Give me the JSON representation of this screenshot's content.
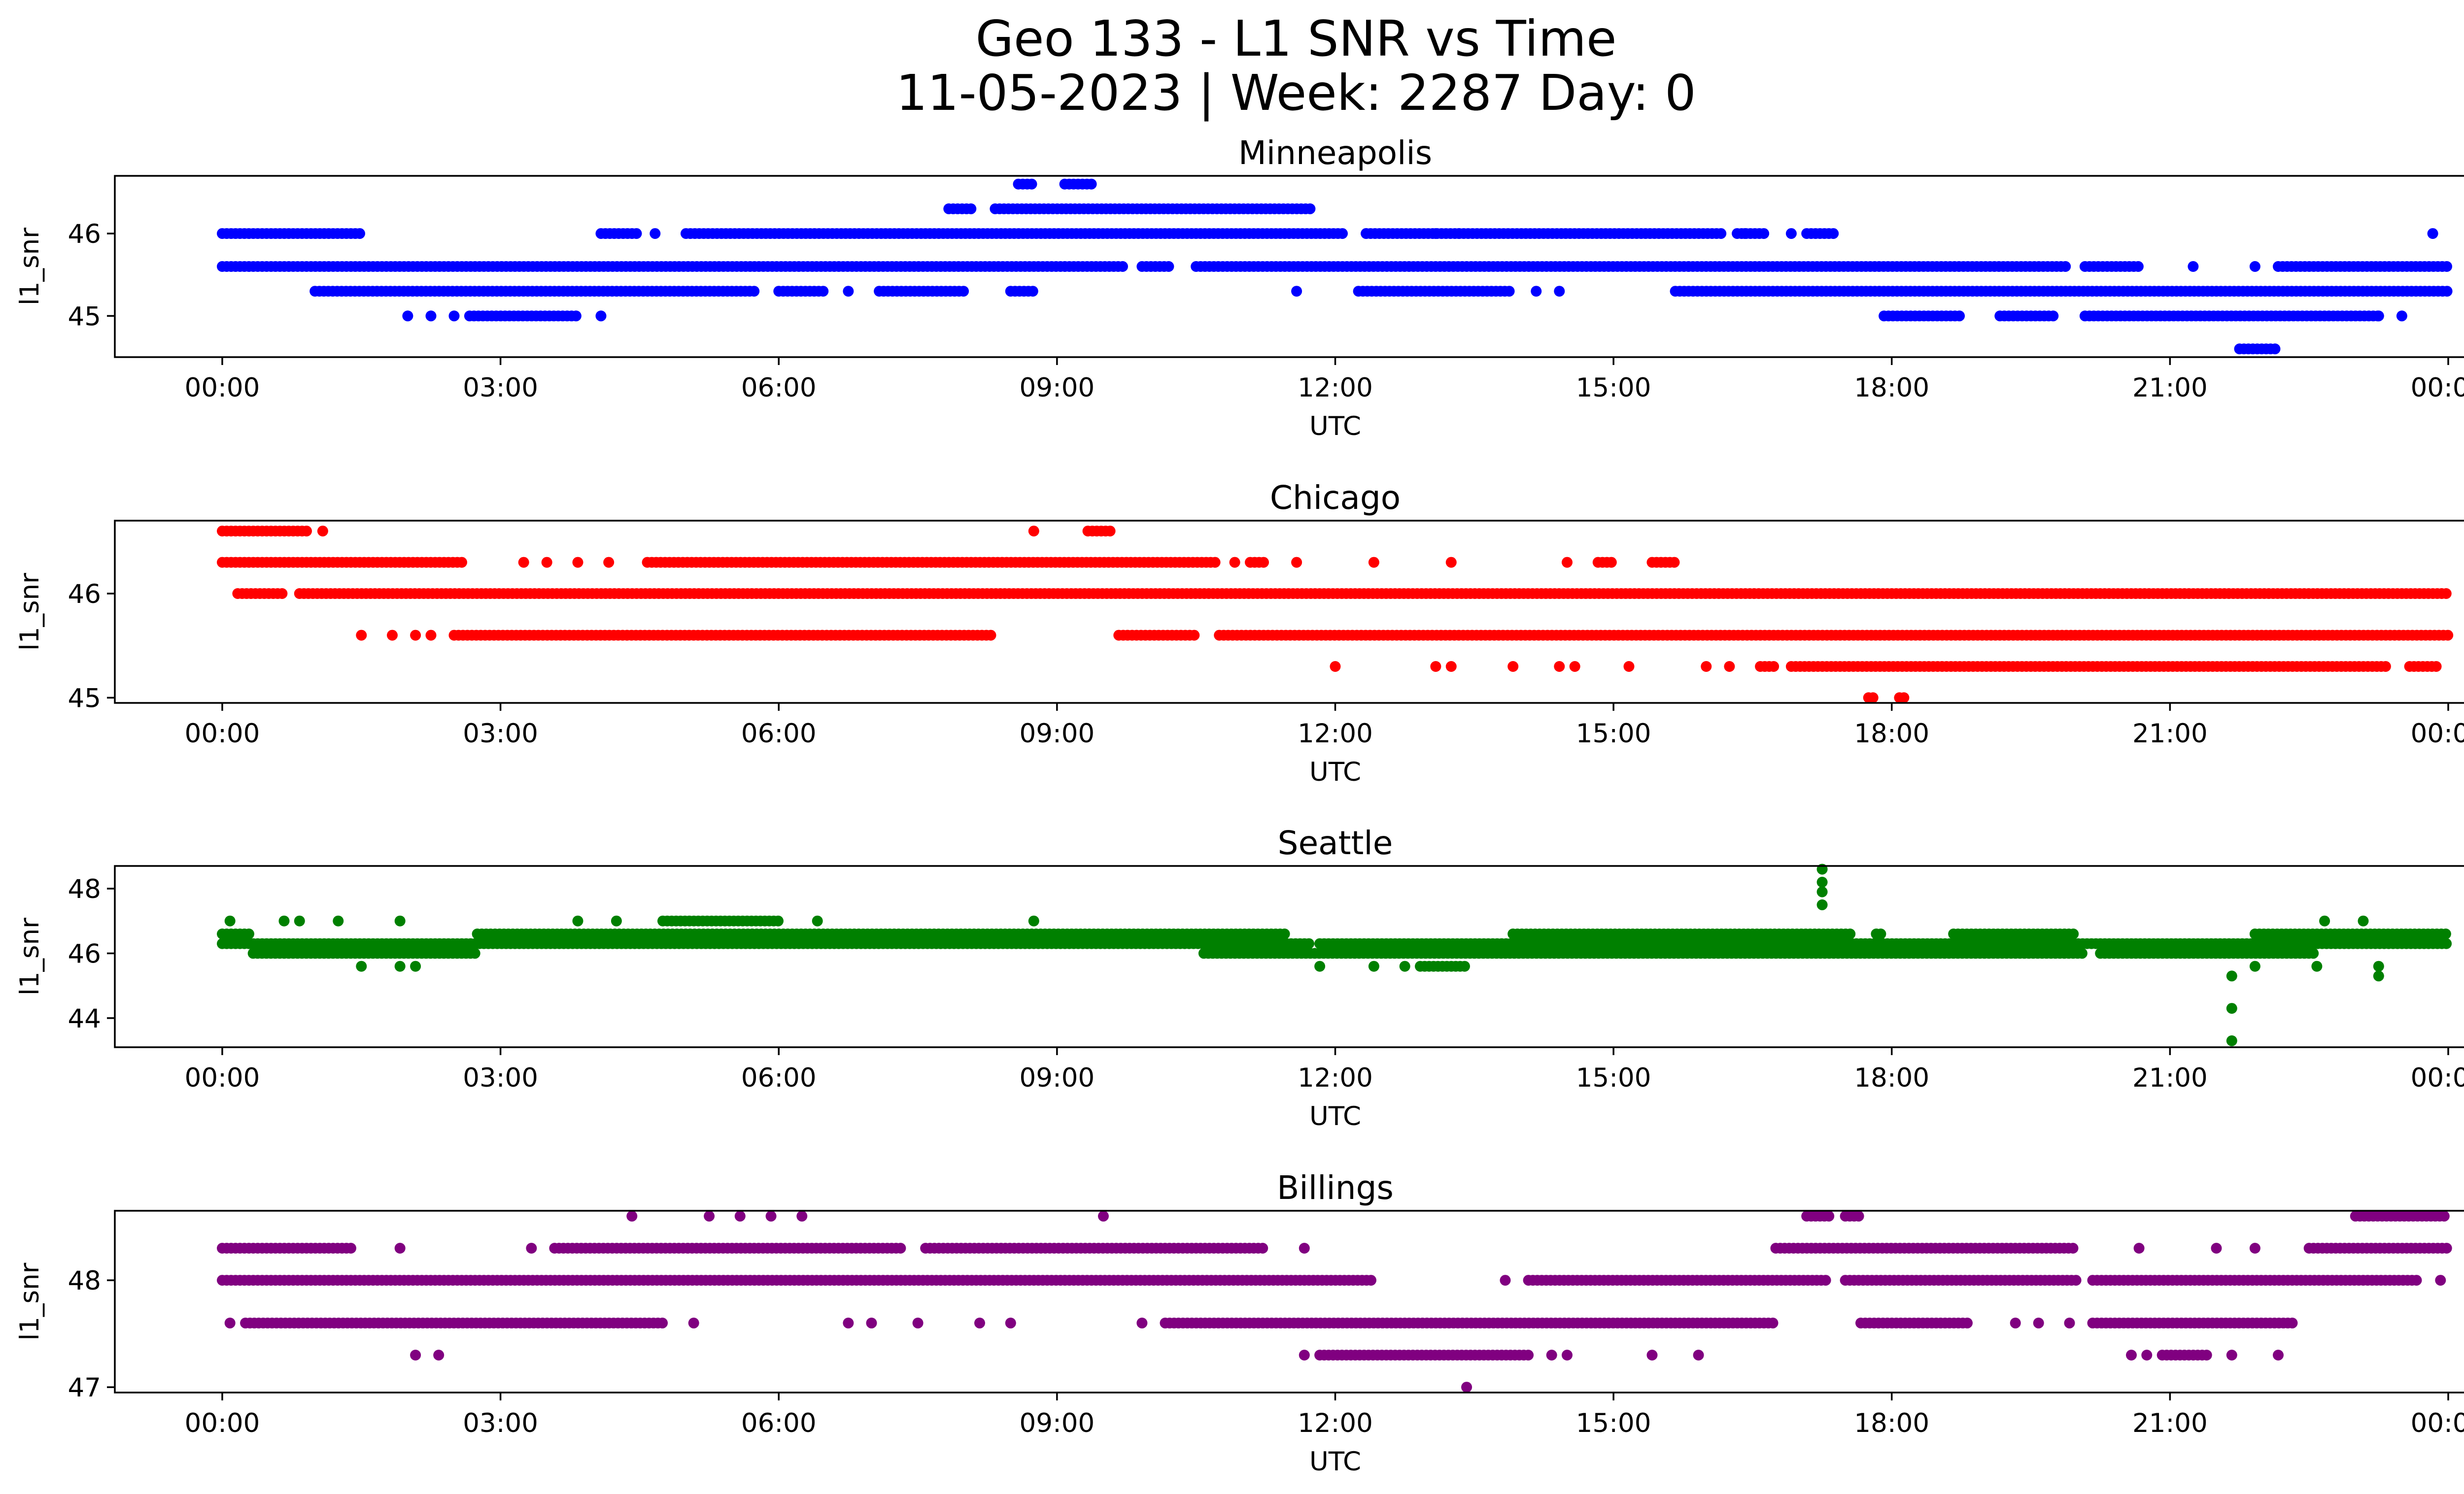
{
  "figure": {
    "title_line1": "Geo 133 - L1 SNR vs Time",
    "title_line2": "11-05-2023 | Week: 2287 Day: 0"
  },
  "chart_data": [
    {
      "type": "scatter",
      "title": "Minneapolis",
      "xlabel": "UTC",
      "ylabel": "l1_snr",
      "color": "#0000ff",
      "xlim": [
        "00:00",
        "24:00"
      ],
      "ylim": [
        44.5,
        46.7
      ],
      "x_ticks": [
        "00:00",
        "03:00",
        "06:00",
        "09:00",
        "12:00",
        "15:00",
        "18:00",
        "21:00",
        "00:00"
      ],
      "y_ticks": [
        45,
        46
      ],
      "segments": [
        {
          "y": 46.6,
          "ranges": [
            [
              "08:35",
              "08:45"
            ],
            [
              "09:05",
              "09:25"
            ]
          ]
        },
        {
          "y": 46.3,
          "ranges": [
            [
              "07:50",
              "08:05"
            ],
            [
              "08:20",
              "11:45"
            ]
          ]
        },
        {
          "y": 46.0,
          "ranges": [
            [
              "00:00",
              "01:30"
            ],
            [
              "04:05",
              "04:30"
            ],
            [
              "05:00",
              "12:05"
            ],
            [
              "12:20",
              "16:10"
            ],
            [
              "16:20",
              "16:40"
            ],
            [
              "17:05",
              "17:25"
            ]
          ]
        },
        {
          "y": 45.6,
          "ranges": [
            [
              "00:00",
              "09:45"
            ],
            [
              "09:55",
              "10:15"
            ],
            [
              "10:30",
              "19:55"
            ],
            [
              "20:05",
              "20:40"
            ],
            [
              "22:10",
              "24:00"
            ]
          ]
        },
        {
          "y": 45.3,
          "ranges": [
            [
              "01:00",
              "05:45"
            ],
            [
              "06:00",
              "06:30"
            ],
            [
              "07:05",
              "08:00"
            ],
            [
              "08:30",
              "08:45"
            ],
            [
              "12:15",
              "13:55"
            ],
            [
              "15:40",
              "24:00"
            ]
          ]
        },
        {
          "y": 45.0,
          "ranges": [
            [
              "02:40",
              "03:50"
            ],
            [
              "17:55",
              "18:45"
            ],
            [
              "19:10",
              "19:45"
            ],
            [
              "20:05",
              "23:15"
            ]
          ]
        },
        {
          "y": 44.6,
          "ranges": [
            [
              "21:45",
              "22:10"
            ]
          ]
        }
      ],
      "points": [
        {
          "x": "02:00",
          "y": 45.0
        },
        {
          "x": "02:15",
          "y": 45.0
        },
        {
          "x": "02:30",
          "y": 45.0
        },
        {
          "x": "04:05",
          "y": 45.0
        },
        {
          "x": "23:15",
          "y": 45.0
        },
        {
          "x": "23:30",
          "y": 45.0
        },
        {
          "x": "04:40",
          "y": 46.0
        },
        {
          "x": "12:20",
          "y": 46.0
        },
        {
          "x": "13:05",
          "y": 46.0
        },
        {
          "x": "13:20",
          "y": 46.0
        },
        {
          "x": "16:25",
          "y": 46.0
        },
        {
          "x": "16:55",
          "y": 46.0
        },
        {
          "x": "23:50",
          "y": 46.0
        },
        {
          "x": "21:15",
          "y": 45.6
        },
        {
          "x": "21:55",
          "y": 45.6
        },
        {
          "x": "11:35",
          "y": 45.3
        },
        {
          "x": "06:45",
          "y": 45.3
        },
        {
          "x": "14:10",
          "y": 45.3
        },
        {
          "x": "14:25",
          "y": 45.3
        }
      ]
    },
    {
      "type": "scatter",
      "title": "Chicago",
      "xlabel": "UTC",
      "ylabel": "l1_snr",
      "color": "#ff0000",
      "xlim": [
        "00:00",
        "24:00"
      ],
      "ylim": [
        44.95,
        46.7
      ],
      "x_ticks": [
        "00:00",
        "03:00",
        "06:00",
        "09:00",
        "12:00",
        "15:00",
        "18:00",
        "21:00",
        "00:00"
      ],
      "y_ticks": [
        45,
        46
      ],
      "segments": [
        {
          "y": 46.6,
          "ranges": [
            [
              "00:00",
              "00:55"
            ],
            [
              "09:20",
              "09:35"
            ]
          ]
        },
        {
          "y": 46.3,
          "ranges": [
            [
              "00:00",
              "02:35"
            ],
            [
              "04:35",
              "10:45"
            ],
            [
              "11:05",
              "11:15"
            ],
            [
              "14:50",
              "15:00"
            ],
            [
              "15:25",
              "15:40"
            ]
          ]
        },
        {
          "y": 46.0,
          "ranges": [
            [
              "00:10",
              "00:40"
            ],
            [
              "00:50",
              "24:00"
            ]
          ]
        },
        {
          "y": 45.6,
          "ranges": [
            [
              "02:30",
              "08:20"
            ],
            [
              "09:40",
              "10:30"
            ],
            [
              "10:45",
              "24:00"
            ]
          ]
        },
        {
          "y": 45.3,
          "ranges": [
            [
              "16:35",
              "16:45"
            ],
            [
              "16:55",
              "23:20"
            ],
            [
              "23:35",
              "23:55"
            ]
          ]
        },
        {
          "y": 45.0,
          "ranges": [
            [
              "17:45",
              "17:50"
            ],
            [
              "18:05",
              "18:10"
            ]
          ]
        }
      ],
      "points": [
        {
          "x": "01:05",
          "y": 46.6
        },
        {
          "x": "08:45",
          "y": 46.6
        },
        {
          "x": "03:15",
          "y": 46.3
        },
        {
          "x": "03:30",
          "y": 46.3
        },
        {
          "x": "03:50",
          "y": 46.3
        },
        {
          "x": "04:10",
          "y": 46.3
        },
        {
          "x": "10:55",
          "y": 46.3
        },
        {
          "x": "11:35",
          "y": 46.3
        },
        {
          "x": "12:25",
          "y": 46.3
        },
        {
          "x": "13:15",
          "y": 46.3
        },
        {
          "x": "14:30",
          "y": 46.3
        },
        {
          "x": "01:30",
          "y": 45.6
        },
        {
          "x": "01:50",
          "y": 45.6
        },
        {
          "x": "02:05",
          "y": 45.6
        },
        {
          "x": "02:15",
          "y": 45.6
        },
        {
          "x": "12:00",
          "y": 45.3
        },
        {
          "x": "13:05",
          "y": 45.3
        },
        {
          "x": "13:15",
          "y": 45.3
        },
        {
          "x": "13:55",
          "y": 45.3
        },
        {
          "x": "14:25",
          "y": 45.3
        },
        {
          "x": "14:35",
          "y": 45.3
        },
        {
          "x": "15:10",
          "y": 45.3
        },
        {
          "x": "16:00",
          "y": 45.3
        },
        {
          "x": "16:15",
          "y": 45.3
        }
      ]
    },
    {
      "type": "scatter",
      "title": "Seattle",
      "xlabel": "UTC",
      "ylabel": "l1_snr",
      "color": "#008000",
      "xlim": [
        "00:00",
        "24:00"
      ],
      "ylim": [
        43.1,
        48.7
      ],
      "x_ticks": [
        "00:00",
        "03:00",
        "06:00",
        "09:00",
        "12:00",
        "15:00",
        "18:00",
        "21:00",
        "00:00"
      ],
      "y_ticks": [
        44,
        46,
        48
      ],
      "segments": [
        {
          "y": 46.6,
          "ranges": [
            [
              "00:00",
              "00:20"
            ],
            [
              "02:45",
              "11:30"
            ],
            [
              "13:55",
              "17:35"
            ],
            [
              "17:50",
              "17:55"
            ],
            [
              "18:40",
              "20:00"
            ],
            [
              "21:55",
              "24:00"
            ]
          ]
        },
        {
          "y": 46.3,
          "ranges": [
            [
              "00:00",
              "11:45"
            ],
            [
              "11:50",
              "24:00"
            ]
          ]
        },
        {
          "y": 46.0,
          "ranges": [
            [
              "00:20",
              "02:45"
            ],
            [
              "10:35",
              "20:05"
            ],
            [
              "20:15",
              "22:35"
            ]
          ]
        },
        {
          "y": 45.6,
          "ranges": [
            [
              "12:55",
              "13:25"
            ]
          ]
        },
        {
          "y": 47.0,
          "ranges": [
            [
              "04:45",
              "06:00"
            ]
          ]
        }
      ],
      "points": [
        {
          "x": "00:05",
          "y": 47.0
        },
        {
          "x": "00:40",
          "y": 47.0
        },
        {
          "x": "00:50",
          "y": 47.0
        },
        {
          "x": "01:15",
          "y": 47.0
        },
        {
          "x": "01:55",
          "y": 47.0
        },
        {
          "x": "03:50",
          "y": 47.0
        },
        {
          "x": "04:15",
          "y": 47.0
        },
        {
          "x": "06:25",
          "y": 47.0
        },
        {
          "x": "08:45",
          "y": 47.0
        },
        {
          "x": "22:40",
          "y": 47.0
        },
        {
          "x": "23:05",
          "y": 47.0
        },
        {
          "x": "01:30",
          "y": 45.6
        },
        {
          "x": "01:55",
          "y": 45.6
        },
        {
          "x": "02:05",
          "y": 45.6
        },
        {
          "x": "11:50",
          "y": 45.6
        },
        {
          "x": "12:25",
          "y": 45.6
        },
        {
          "x": "12:45",
          "y": 45.6
        },
        {
          "x": "21:55",
          "y": 45.6
        },
        {
          "x": "22:35",
          "y": 45.6
        },
        {
          "x": "23:15",
          "y": 45.6
        },
        {
          "x": "17:15",
          "y": 47.5
        },
        {
          "x": "17:15",
          "y": 47.9
        },
        {
          "x": "17:15",
          "y": 48.2
        },
        {
          "x": "17:15",
          "y": 48.6
        },
        {
          "x": "21:40",
          "y": 45.3
        },
        {
          "x": "21:40",
          "y": 44.3
        },
        {
          "x": "21:40",
          "y": 43.3
        },
        {
          "x": "23:15",
          "y": 45.3
        }
      ]
    },
    {
      "type": "scatter",
      "title": "Billings",
      "xlabel": "UTC",
      "ylabel": "l1_snr",
      "color": "#800080",
      "xlim": [
        "00:00",
        "24:00"
      ],
      "ylim": [
        46.95,
        48.65
      ],
      "x_ticks": [
        "00:00",
        "03:00",
        "06:00",
        "09:00",
        "12:00",
        "15:00",
        "18:00",
        "21:00",
        "00:00"
      ],
      "y_ticks": [
        47,
        48
      ],
      "segments": [
        {
          "y": 48.6,
          "ranges": [
            [
              "17:05",
              "17:20"
            ],
            [
              "17:30",
              "17:40"
            ],
            [
              "23:00",
              "24:00"
            ]
          ]
        },
        {
          "y": 48.3,
          "ranges": [
            [
              "00:00",
              "01:25"
            ],
            [
              "03:35",
              "07:20"
            ],
            [
              "07:35",
              "11:15"
            ],
            [
              "16:45",
              "20:00"
            ],
            [
              "22:30",
              "24:00"
            ]
          ]
        },
        {
          "y": 48.0,
          "ranges": [
            [
              "00:00",
              "12:25"
            ],
            [
              "14:05",
              "17:20"
            ],
            [
              "17:30",
              "20:00"
            ],
            [
              "20:10",
              "23:40"
            ]
          ]
        },
        {
          "y": 47.6,
          "ranges": [
            [
              "00:15",
              "04:45"
            ],
            [
              "10:10",
              "16:45"
            ],
            [
              "17:40",
              "18:50"
            ],
            [
              "20:10",
              "22:20"
            ]
          ]
        },
        {
          "y": 47.3,
          "ranges": [
            [
              "11:50",
              "14:05"
            ],
            [
              "20:55",
              "21:25"
            ]
          ]
        }
      ],
      "points": [
        {
          "x": "00:05",
          "y": 47.6
        },
        {
          "x": "05:05",
          "y": 47.6
        },
        {
          "x": "06:45",
          "y": 47.6
        },
        {
          "x": "07:00",
          "y": 47.6
        },
        {
          "x": "07:30",
          "y": 47.6
        },
        {
          "x": "08:10",
          "y": 47.6
        },
        {
          "x": "08:30",
          "y": 47.6
        },
        {
          "x": "09:55",
          "y": 47.6
        },
        {
          "x": "19:20",
          "y": 47.6
        },
        {
          "x": "19:35",
          "y": 47.6
        },
        {
          "x": "19:55",
          "y": 47.6
        },
        {
          "x": "02:05",
          "y": 47.3
        },
        {
          "x": "02:20",
          "y": 47.3
        },
        {
          "x": "11:40",
          "y": 47.3
        },
        {
          "x": "14:20",
          "y": 47.3
        },
        {
          "x": "14:30",
          "y": 47.3
        },
        {
          "x": "15:25",
          "y": 47.3
        },
        {
          "x": "15:55",
          "y": 47.3
        },
        {
          "x": "20:35",
          "y": 47.3
        },
        {
          "x": "20:45",
          "y": 47.3
        },
        {
          "x": "21:40",
          "y": 47.3
        },
        {
          "x": "22:10",
          "y": 47.3
        },
        {
          "x": "03:20",
          "y": 48.3
        },
        {
          "x": "01:55",
          "y": 48.3
        },
        {
          "x": "11:40",
          "y": 48.3
        },
        {
          "x": "20:40",
          "y": 48.3
        },
        {
          "x": "21:30",
          "y": 48.3
        },
        {
          "x": "21:55",
          "y": 48.3
        },
        {
          "x": "13:50",
          "y": 48.0
        },
        {
          "x": "23:55",
          "y": 48.0
        },
        {
          "x": "04:25",
          "y": 48.6
        },
        {
          "x": "05:15",
          "y": 48.6
        },
        {
          "x": "05:35",
          "y": 48.6
        },
        {
          "x": "05:55",
          "y": 48.6
        },
        {
          "x": "06:15",
          "y": 48.6
        },
        {
          "x": "09:30",
          "y": 48.6
        },
        {
          "x": "13:25",
          "y": 47.0
        }
      ]
    }
  ]
}
